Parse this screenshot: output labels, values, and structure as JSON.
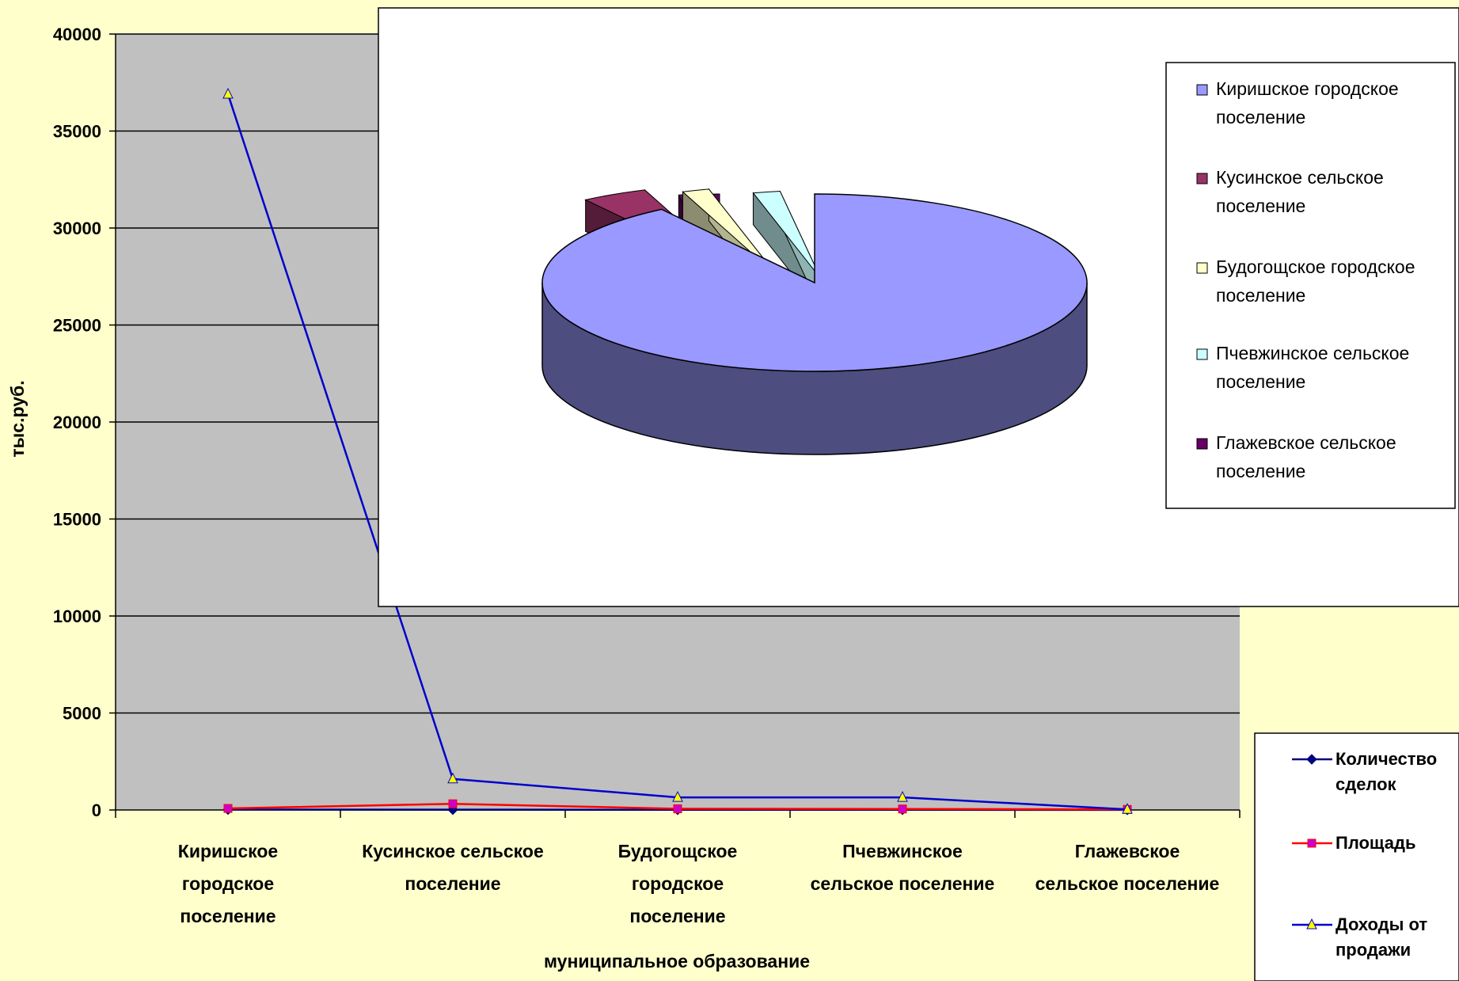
{
  "chart_data": [
    {
      "type": "line",
      "title": "",
      "xlabel": "муниципальное образование",
      "ylabel": "тыс.руб.",
      "ylim": [
        0,
        40000
      ],
      "yticks": [
        0,
        5000,
        10000,
        15000,
        20000,
        25000,
        30000,
        35000,
        40000
      ],
      "grid": true,
      "legend_position": "bottom-right",
      "categories": [
        [
          "Киришское",
          "городское",
          "поселение"
        ],
        [
          "Кусинское сельское",
          "поселение"
        ],
        [
          "Будогощское",
          "городское",
          "поселение"
        ],
        [
          "Пчевжинское",
          "сельское поселение"
        ],
        [
          "Глажевское",
          "сельское поселение"
        ]
      ],
      "series": [
        {
          "name": "Количество сделок",
          "color": "#000080",
          "marker": "diamond",
          "values": [
            20,
            15,
            10,
            8,
            3
          ]
        },
        {
          "name": "Площадь",
          "color": "#ff0000",
          "marker": "square",
          "marker_color": "#cc00cc",
          "values": [
            80,
            320,
            60,
            50,
            30
          ]
        },
        {
          "name": "Доходы от продажи",
          "color": "#0000cc",
          "marker": "triangle",
          "marker_color": "#ffff00",
          "values": [
            36900,
            1600,
            650,
            650,
            30
          ]
        }
      ]
    },
    {
      "type": "pie",
      "title": "",
      "legend_position": "right",
      "slices": [
        {
          "name": "Киришское городское поселение",
          "value": 90.5,
          "color": "#9999ff"
        },
        {
          "name": "Кусинское сельское поселение",
          "value": 3.9,
          "color": "#993366"
        },
        {
          "name": "Будогощское городское поселение",
          "value": 1.6,
          "color": "#ffffcc"
        },
        {
          "name": "Пчевжинское сельское поселение",
          "value": 1.6,
          "color": "#ccffff"
        },
        {
          "name": "Глажевское сельское поселение",
          "value": 2.4,
          "color": "#660066"
        }
      ],
      "legend_lines": [
        [
          "Киришское городское",
          "поселение"
        ],
        [
          "Кусинское сельское",
          "поселение"
        ],
        [
          "Будогощское городское",
          "поселение"
        ],
        [
          "Пчевжинское сельское",
          "поселение"
        ],
        [
          "Глажевское сельское",
          "поселение"
        ]
      ]
    }
  ]
}
